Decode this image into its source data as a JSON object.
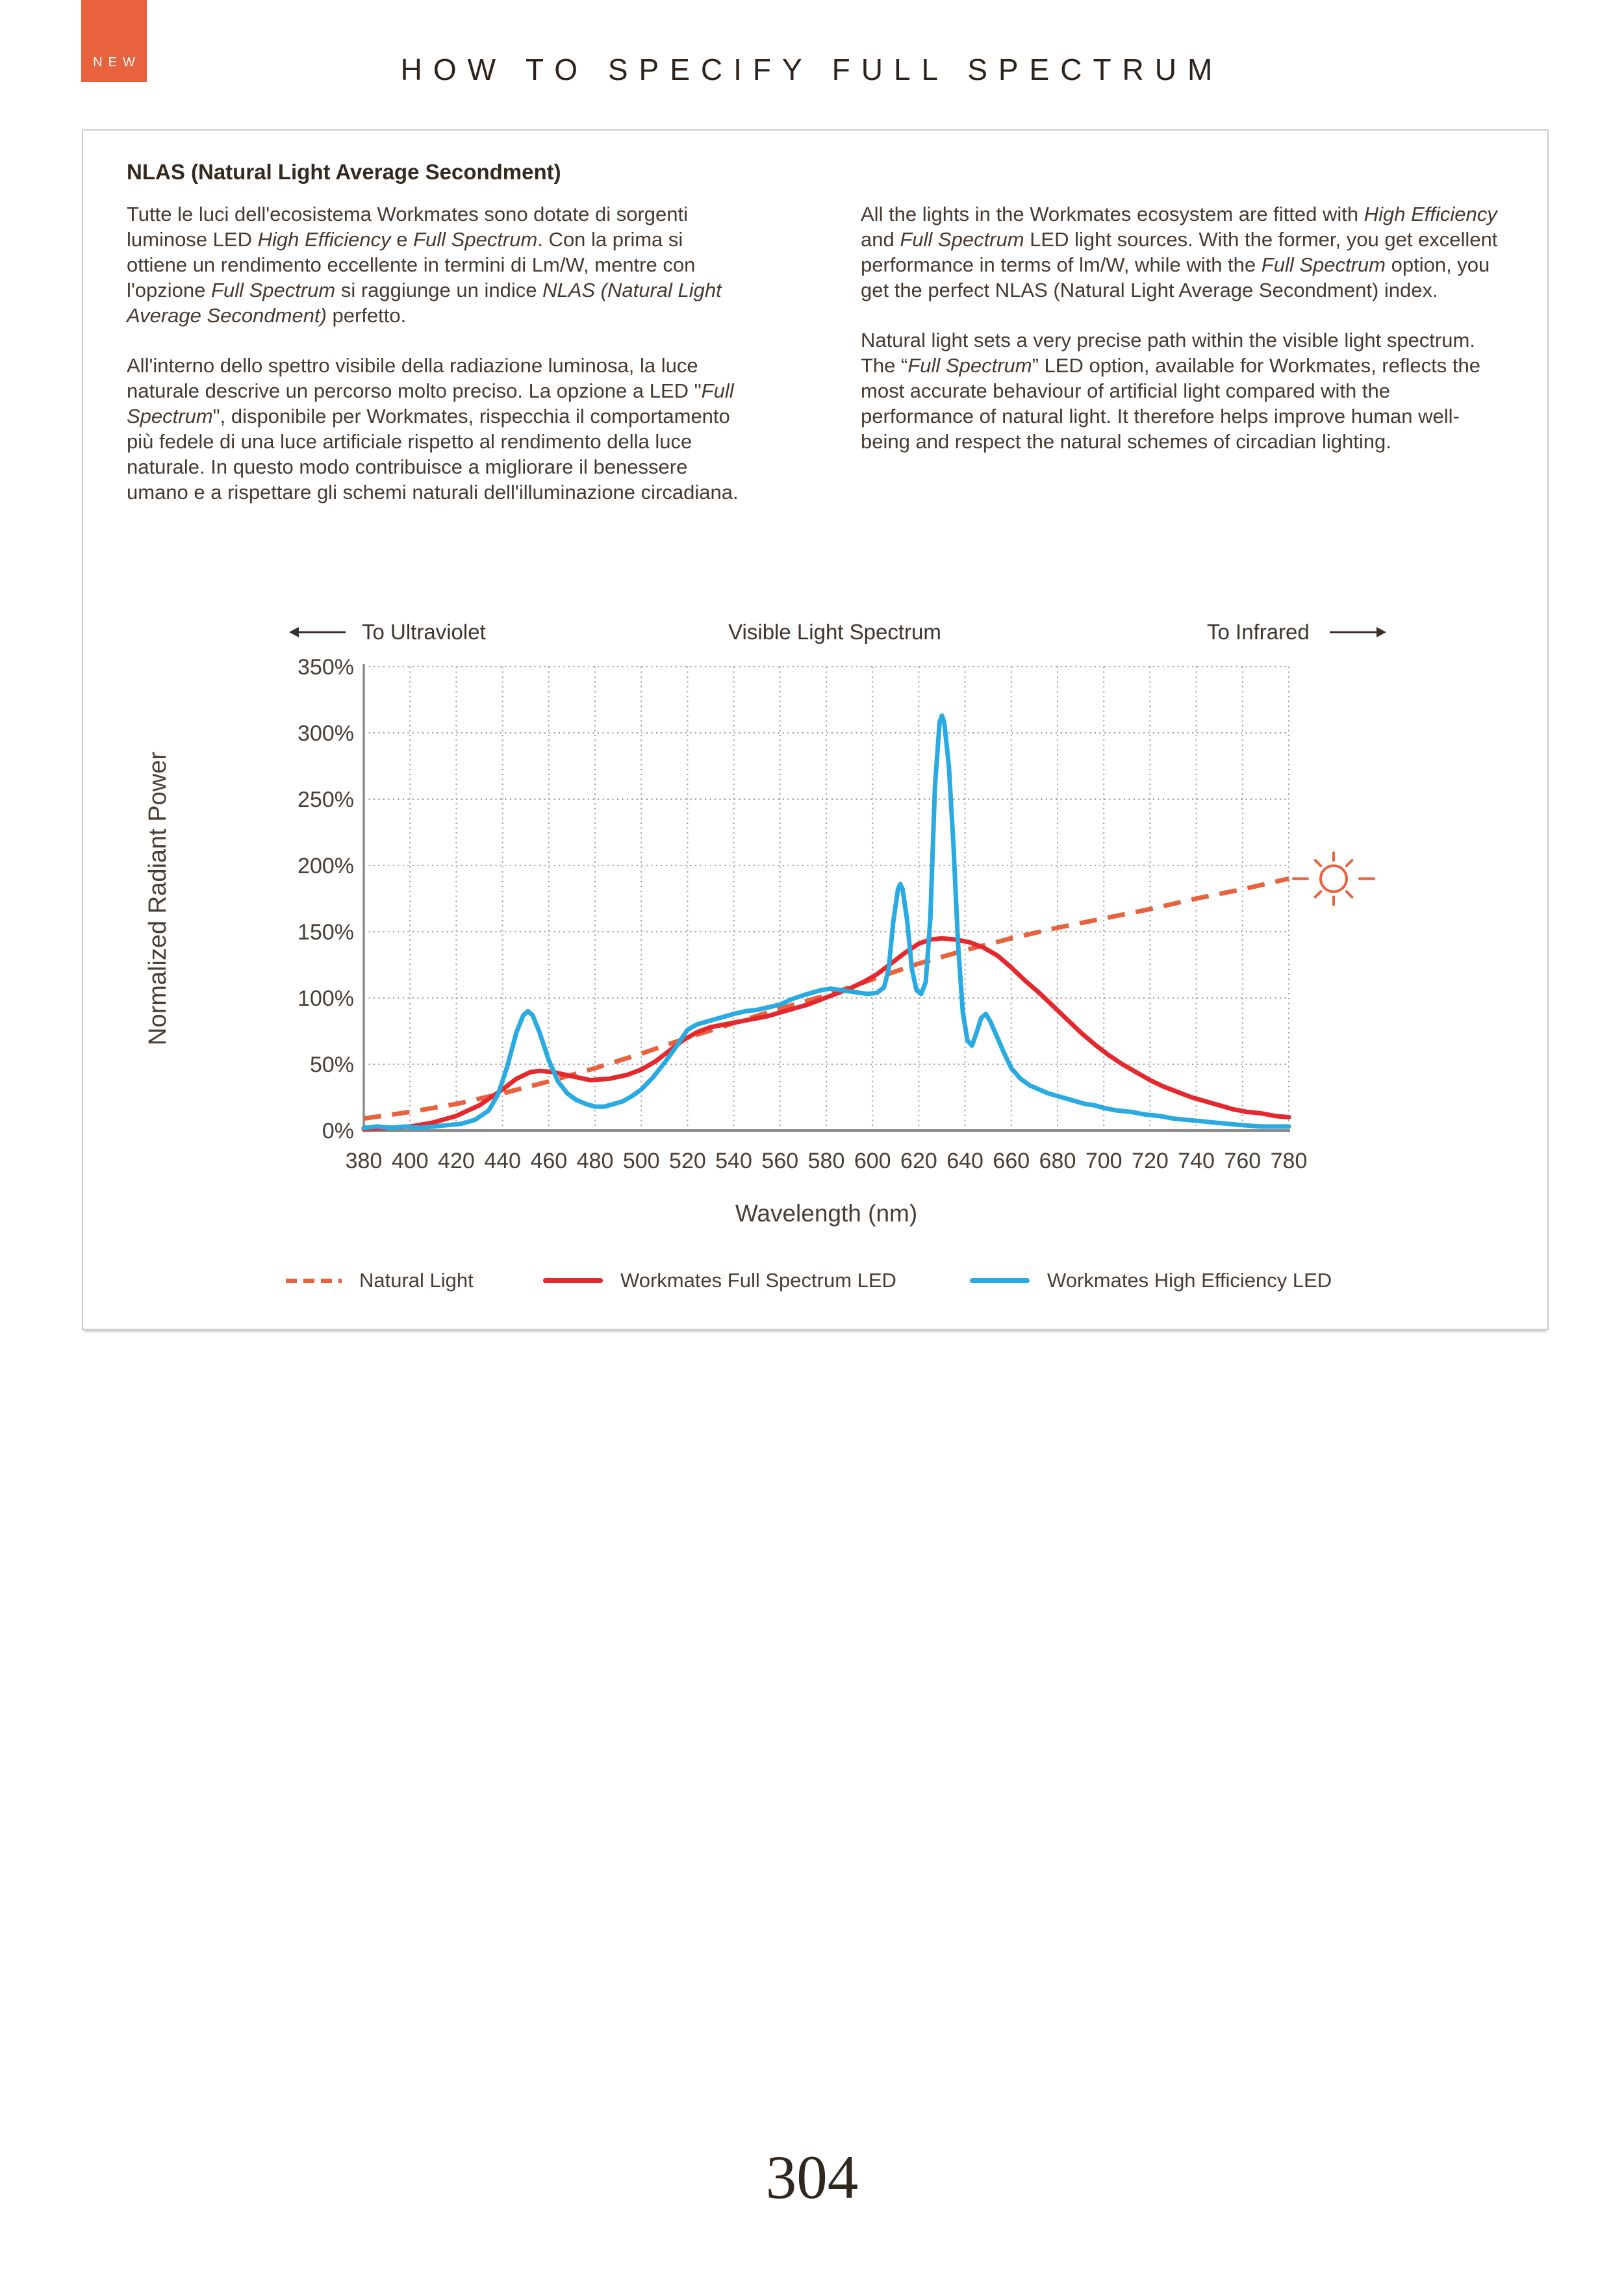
{
  "badge": {
    "label": "NEW"
  },
  "page_title": "HOW TO SPECIFY FULL SPECTRUM",
  "page_number": "304",
  "colors": {
    "accent": "#e8623d",
    "full_spectrum_red": "#e5282d",
    "high_efficiency_blue": "#29abe2",
    "grid": "#9a9a9a",
    "axis": "#8b8b8b",
    "box_border": "#cccccc",
    "text": "#463a30"
  },
  "panel": {
    "heading": "NLAS (Natural Light Average Secondment)",
    "col_it": [
      [
        {
          "t": "Tutte le luci dell'ecosistema Workmates sono dotate di sorgenti luminose LED "
        },
        {
          "t": "High Efficiency",
          "i": true
        },
        {
          "t": " e "
        },
        {
          "t": "Full Spectrum",
          "i": true
        },
        {
          "t": ". Con la prima si ottiene un rendimento eccellente in termini di Lm/W, mentre con l'opzione "
        },
        {
          "t": "Full Spectrum",
          "i": true
        },
        {
          "t": " si raggiunge un indice "
        },
        {
          "t": "NLAS (Natural Light Average Secondment)",
          "i": true
        },
        {
          "t": " perfetto."
        }
      ],
      [
        {
          "t": "All'interno dello spettro visibile della radiazione luminosa, la luce naturale descrive un percorso molto preciso. La opzione a LED \""
        },
        {
          "t": "Full Spectrum",
          "i": true
        },
        {
          "t": "\", disponibile per Workmates, rispecchia il comportamento più fedele di una luce artificiale rispetto al rendimento della luce naturale. In questo modo contribuisce a migliorare il benessere umano e a rispettare gli schemi naturali dell'illuminazione circadiana."
        }
      ]
    ],
    "col_en": [
      [
        {
          "t": "All the lights in the Workmates ecosystem are fitted with "
        },
        {
          "t": "High Efficiency",
          "i": true
        },
        {
          "t": " and "
        },
        {
          "t": "Full Spectrum",
          "i": true
        },
        {
          "t": " LED light sources. With the former, you get excellent performance in terms of lm/W, while with the "
        },
        {
          "t": "Full Spectrum",
          "i": true
        },
        {
          "t": " option, you get the perfect NLAS (Natural Light Average Secondment) index."
        }
      ],
      [
        {
          "t": "Natural light sets a very precise path within the visible light spectrum. The “"
        },
        {
          "t": "Full Spectrum",
          "i": true
        },
        {
          "t": "” LED option, available for Workmates, reflects the most accurate behaviour of artificial light compared with the performance of natural light. It therefore helps improve human well-being and respect the natural schemes of circadian lighting."
        }
      ]
    ]
  },
  "chart_data": {
    "type": "line",
    "direction_left": "To Ultraviolet",
    "direction_center": "Visible Light Spectrum",
    "direction_right": "To Infrared",
    "xlabel": "Wavelength (nm)",
    "ylabel": "Normalized Radiant Power",
    "xlim": [
      380,
      780
    ],
    "ylim": [
      0,
      350
    ],
    "x_ticks": [
      380,
      400,
      420,
      440,
      460,
      480,
      500,
      520,
      540,
      560,
      580,
      600,
      620,
      640,
      660,
      680,
      700,
      720,
      740,
      760,
      780
    ],
    "y_ticks": [
      0,
      50,
      100,
      150,
      200,
      250,
      300,
      350
    ],
    "y_tick_suffix": "%",
    "grid": "dotted",
    "legend_position": "bottom",
    "sun_icon_at": {
      "x": 780,
      "y": 190,
      "note": "sun glyph just right of plot at end of Natural Light line"
    },
    "series": [
      {
        "name": "Natural Light",
        "style": "dashed",
        "color": "#e8623d",
        "points": [
          [
            380,
            9
          ],
          [
            400,
            14
          ],
          [
            420,
            20
          ],
          [
            440,
            28
          ],
          [
            460,
            37
          ],
          [
            480,
            47
          ],
          [
            500,
            58
          ],
          [
            520,
            70
          ],
          [
            540,
            81
          ],
          [
            560,
            92
          ],
          [
            580,
            102
          ],
          [
            600,
            114
          ],
          [
            620,
            126
          ],
          [
            640,
            136
          ],
          [
            660,
            145
          ],
          [
            680,
            153
          ],
          [
            700,
            160
          ],
          [
            720,
            167
          ],
          [
            740,
            175
          ],
          [
            760,
            182
          ],
          [
            780,
            190
          ]
        ]
      },
      {
        "name": "Workmates Full Spectrum LED",
        "style": "solid",
        "color": "#e5282d",
        "points": [
          [
            380,
            1
          ],
          [
            390,
            2
          ],
          [
            400,
            3
          ],
          [
            410,
            6
          ],
          [
            420,
            11
          ],
          [
            430,
            19
          ],
          [
            440,
            31
          ],
          [
            446,
            39
          ],
          [
            452,
            44
          ],
          [
            456,
            45
          ],
          [
            462,
            44
          ],
          [
            470,
            41
          ],
          [
            478,
            38
          ],
          [
            486,
            39
          ],
          [
            494,
            42
          ],
          [
            500,
            46
          ],
          [
            506,
            52
          ],
          [
            512,
            60
          ],
          [
            518,
            68
          ],
          [
            524,
            74
          ],
          [
            530,
            78
          ],
          [
            536,
            80
          ],
          [
            542,
            82
          ],
          [
            548,
            84
          ],
          [
            554,
            86
          ],
          [
            560,
            89
          ],
          [
            566,
            92
          ],
          [
            572,
            95
          ],
          [
            578,
            99
          ],
          [
            584,
            103
          ],
          [
            590,
            107
          ],
          [
            596,
            112
          ],
          [
            602,
            118
          ],
          [
            608,
            126
          ],
          [
            614,
            134
          ],
          [
            620,
            141
          ],
          [
            625,
            144
          ],
          [
            630,
            145
          ],
          [
            636,
            144
          ],
          [
            642,
            142
          ],
          [
            648,
            138
          ],
          [
            654,
            132
          ],
          [
            660,
            123
          ],
          [
            666,
            113
          ],
          [
            672,
            104
          ],
          [
            678,
            94
          ],
          [
            684,
            84
          ],
          [
            690,
            74
          ],
          [
            696,
            65
          ],
          [
            702,
            57
          ],
          [
            708,
            50
          ],
          [
            714,
            44
          ],
          [
            720,
            38
          ],
          [
            726,
            33
          ],
          [
            732,
            29
          ],
          [
            738,
            25
          ],
          [
            744,
            22
          ],
          [
            750,
            19
          ],
          [
            756,
            16
          ],
          [
            762,
            14
          ],
          [
            768,
            13
          ],
          [
            774,
            11
          ],
          [
            780,
            10
          ]
        ]
      },
      {
        "name": "Workmates High Efficiency LED",
        "style": "solid",
        "color": "#29abe2",
        "points": [
          [
            380,
            2
          ],
          [
            386,
            3
          ],
          [
            392,
            2
          ],
          [
            398,
            3
          ],
          [
            404,
            2
          ],
          [
            410,
            3
          ],
          [
            416,
            4
          ],
          [
            422,
            5
          ],
          [
            428,
            8
          ],
          [
            434,
            15
          ],
          [
            438,
            27
          ],
          [
            442,
            48
          ],
          [
            446,
            74
          ],
          [
            449,
            87
          ],
          [
            451,
            90
          ],
          [
            453,
            87
          ],
          [
            456,
            74
          ],
          [
            460,
            53
          ],
          [
            464,
            37
          ],
          [
            468,
            28
          ],
          [
            472,
            23
          ],
          [
            476,
            20
          ],
          [
            480,
            18
          ],
          [
            484,
            18
          ],
          [
            488,
            20
          ],
          [
            492,
            22
          ],
          [
            496,
            26
          ],
          [
            500,
            31
          ],
          [
            505,
            40
          ],
          [
            510,
            51
          ],
          [
            515,
            63
          ],
          [
            520,
            76
          ],
          [
            524,
            80
          ],
          [
            528,
            82
          ],
          [
            532,
            84
          ],
          [
            536,
            86
          ],
          [
            540,
            88
          ],
          [
            545,
            90
          ],
          [
            550,
            91
          ],
          [
            555,
            93
          ],
          [
            560,
            95
          ],
          [
            565,
            99
          ],
          [
            570,
            102
          ],
          [
            574,
            104
          ],
          [
            578,
            106
          ],
          [
            582,
            107
          ],
          [
            586,
            106
          ],
          [
            590,
            105
          ],
          [
            594,
            104
          ],
          [
            598,
            103
          ],
          [
            602,
            104
          ],
          [
            605,
            108
          ],
          [
            607,
            122
          ],
          [
            609,
            158
          ],
          [
            611,
            182
          ],
          [
            612,
            186
          ],
          [
            613,
            182
          ],
          [
            615,
            158
          ],
          [
            617,
            122
          ],
          [
            619,
            106
          ],
          [
            621,
            103
          ],
          [
            623,
            112
          ],
          [
            625,
            160
          ],
          [
            627,
            260
          ],
          [
            629,
            308
          ],
          [
            630,
            313
          ],
          [
            631,
            308
          ],
          [
            633,
            275
          ],
          [
            635,
            215
          ],
          [
            637,
            140
          ],
          [
            639,
            90
          ],
          [
            641,
            68
          ],
          [
            643,
            64
          ],
          [
            645,
            74
          ],
          [
            647,
            85
          ],
          [
            649,
            88
          ],
          [
            651,
            82
          ],
          [
            654,
            70
          ],
          [
            657,
            58
          ],
          [
            660,
            47
          ],
          [
            664,
            39
          ],
          [
            668,
            34
          ],
          [
            672,
            31
          ],
          [
            676,
            28
          ],
          [
            680,
            26
          ],
          [
            684,
            24
          ],
          [
            688,
            22
          ],
          [
            692,
            20
          ],
          [
            696,
            19
          ],
          [
            700,
            17
          ],
          [
            706,
            15
          ],
          [
            712,
            14
          ],
          [
            718,
            12
          ],
          [
            724,
            11
          ],
          [
            730,
            9
          ],
          [
            736,
            8
          ],
          [
            742,
            7
          ],
          [
            748,
            6
          ],
          [
            754,
            5
          ],
          [
            760,
            4
          ],
          [
            768,
            3
          ],
          [
            774,
            3
          ],
          [
            780,
            3
          ]
        ]
      }
    ]
  }
}
